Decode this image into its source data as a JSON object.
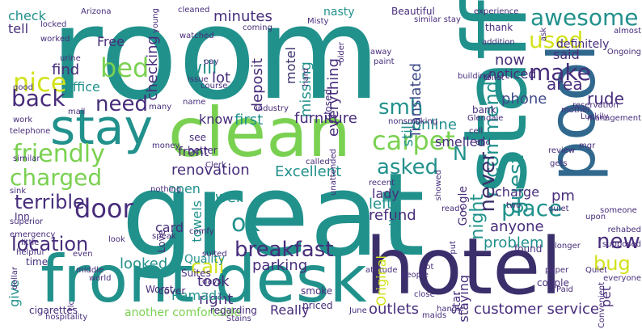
{
  "colors": {
    "background": "#ffffff",
    "teal": "#21918c",
    "green": "#2a9d6f",
    "lime": "#7ad151",
    "yellow": "#d2e21b",
    "navy": "#3b2f6b",
    "purple": "#472d7b",
    "blue": "#31688e",
    "steel": "#3e4a89"
  },
  "words": [
    {
      "text": "room"
    },
    {
      "text": "great"
    },
    {
      "text": "clean"
    },
    {
      "text": "staff"
    },
    {
      "text": "hotel"
    },
    {
      "text": "front desk"
    },
    {
      "text": "stay"
    },
    {
      "text": "pool"
    },
    {
      "text": "friendly"
    },
    {
      "text": "bed"
    },
    {
      "text": "nice"
    },
    {
      "text": "back"
    },
    {
      "text": "charged"
    },
    {
      "text": "door"
    },
    {
      "text": "location"
    },
    {
      "text": "carpet"
    },
    {
      "text": "breakfast"
    },
    {
      "text": "awesome"
    },
    {
      "text": "used"
    },
    {
      "text": "make"
    },
    {
      "text": "recommend"
    },
    {
      "text": "never"
    },
    {
      "text": "night"
    },
    {
      "text": "guest"
    },
    {
      "text": "place"
    },
    {
      "text": "new"
    },
    {
      "text": "bug"
    },
    {
      "text": "ok"
    },
    {
      "text": "call"
    },
    {
      "text": "smh"
    },
    {
      "text": "asked"
    },
    {
      "text": "need"
    },
    {
      "text": "terrible"
    },
    {
      "text": "will"
    },
    {
      "text": "check"
    },
    {
      "text": "tell"
    },
    {
      "text": "find"
    },
    {
      "text": "Free"
    },
    {
      "text": "office"
    },
    {
      "text": "checking"
    },
    {
      "text": "lot"
    },
    {
      "text": "minutes"
    },
    {
      "text": "motel"
    },
    {
      "text": "deposit"
    },
    {
      "text": "missing"
    },
    {
      "text": "everything"
    },
    {
      "text": "first"
    },
    {
      "text": "furniture"
    },
    {
      "text": "Translated"
    },
    {
      "text": "still"
    },
    {
      "text": "now"
    },
    {
      "text": "noticed"
    },
    {
      "text": "area"
    },
    {
      "text": "rude"
    },
    {
      "text": "phone"
    },
    {
      "text": "online"
    },
    {
      "text": "Excellent"
    },
    {
      "text": "renovation"
    },
    {
      "text": "know"
    },
    {
      "text": "front"
    },
    {
      "text": "open"
    },
    {
      "text": "lady"
    },
    {
      "text": "smelled"
    },
    {
      "text": "N"
    },
    {
      "text": "said"
    },
    {
      "text": "definitely"
    },
    {
      "text": "parking"
    },
    {
      "text": "refund"
    },
    {
      "text": "problem"
    },
    {
      "text": "customer service"
    },
    {
      "text": "walk"
    },
    {
      "text": "left"
    },
    {
      "text": "charge"
    },
    {
      "text": "pm"
    },
    {
      "text": "anyone"
    },
    {
      "text": "well"
    },
    {
      "text": "towels"
    },
    {
      "text": "card"
    },
    {
      "text": "looked"
    },
    {
      "text": "took"
    },
    {
      "text": "right"
    },
    {
      "text": "Ramada"
    },
    {
      "text": "outlets"
    },
    {
      "text": "Original"
    },
    {
      "text": "staying"
    },
    {
      "text": "give"
    },
    {
      "text": "Google"
    },
    {
      "text": "pet"
    },
    {
      "text": "another comfortable"
    },
    {
      "text": "Inn"
    },
    {
      "text": "Suites"
    },
    {
      "text": "Quality"
    },
    {
      "text": "Really"
    },
    {
      "text": "smoke"
    },
    {
      "text": "Star"
    },
    {
      "text": "Worst"
    },
    {
      "text": "Arizona"
    },
    {
      "text": "cleaned"
    },
    {
      "text": "nasty"
    },
    {
      "text": "Beautiful"
    },
    {
      "text": "experience"
    },
    {
      "text": "thank"
    },
    {
      "text": "Ongoing"
    },
    {
      "text": "Misty"
    },
    {
      "text": "coming"
    },
    {
      "text": "watched"
    },
    {
      "text": "issue"
    },
    {
      "text": "pay"
    },
    {
      "text": "young"
    },
    {
      "text": "locked"
    },
    {
      "text": "worked"
    },
    {
      "text": "similar"
    },
    {
      "text": "mall"
    },
    {
      "text": "telephone"
    },
    {
      "text": "work"
    },
    {
      "text": "sink"
    },
    {
      "text": "superior"
    },
    {
      "text": "emergency"
    },
    {
      "text": "little"
    },
    {
      "text": "helpful"
    },
    {
      "text": "time"
    },
    {
      "text": "dollar"
    },
    {
      "text": "cigarettes"
    },
    {
      "text": "tlc"
    },
    {
      "text": "regarding"
    },
    {
      "text": "priced"
    },
    {
      "text": "June"
    },
    {
      "text": "Stains"
    },
    {
      "text": "maids"
    },
    {
      "text": "Paid"
    },
    {
      "text": "couple"
    },
    {
      "text": "paper"
    },
    {
      "text": "everyone"
    },
    {
      "text": "Quiet"
    },
    {
      "text": "supposed"
    },
    {
      "text": "rehabed"
    },
    {
      "text": "upon"
    },
    {
      "text": "someone"
    },
    {
      "text": "gets"
    },
    {
      "text": "review"
    },
    {
      "text": "management"
    },
    {
      "text": "Luckily"
    },
    {
      "text": "mother"
    },
    {
      "text": "reservation"
    },
    {
      "text": "almost"
    },
    {
      "text": "toilet"
    },
    {
      "text": "addition"
    },
    {
      "text": "building"
    },
    {
      "text": "paint"
    },
    {
      "text": "away"
    },
    {
      "text": "older"
    },
    {
      "text": "closed"
    },
    {
      "text": "industry"
    },
    {
      "text": "many"
    },
    {
      "text": "name"
    },
    {
      "text": "course"
    },
    {
      "text": "see"
    },
    {
      "text": "better"
    },
    {
      "text": "money"
    },
    {
      "text": "nonsmoking"
    },
    {
      "text": "called"
    },
    {
      "text": "Clerk"
    },
    {
      "text": "unattended"
    },
    {
      "text": "Glendale"
    },
    {
      "text": "cell"
    },
    {
      "text": "bank"
    },
    {
      "text": "similar stay"
    },
    {
      "text": "recent"
    },
    {
      "text": "showed"
    },
    {
      "text": "found"
    },
    {
      "text": "longer"
    },
    {
      "text": "quiet"
    },
    {
      "text": "mgr"
    },
    {
      "text": "two"
    },
    {
      "text": "end"
    },
    {
      "text": "cover"
    },
    {
      "text": "even"
    },
    {
      "text": "middle"
    },
    {
      "text": "world"
    },
    {
      "text": "Love"
    },
    {
      "text": "speak"
    },
    {
      "text": "suited"
    },
    {
      "text": "comfy"
    },
    {
      "text": "hospitality"
    },
    {
      "text": "attitude"
    },
    {
      "text": "people"
    },
    {
      "text": "got"
    },
    {
      "text": "close"
    },
    {
      "text": "handle"
    },
    {
      "text": "put"
    },
    {
      "text": "Convenient"
    },
    {
      "text": "nothing"
    },
    {
      "text": "days"
    },
    {
      "text": "ready"
    },
    {
      "text": "good"
    },
    {
      "text": "urine"
    },
    {
      "text": "look"
    },
    {
      "text": "ask"
    },
    {
      "text": "hard"
    },
    {
      "text": "Ill"
    }
  ]
}
